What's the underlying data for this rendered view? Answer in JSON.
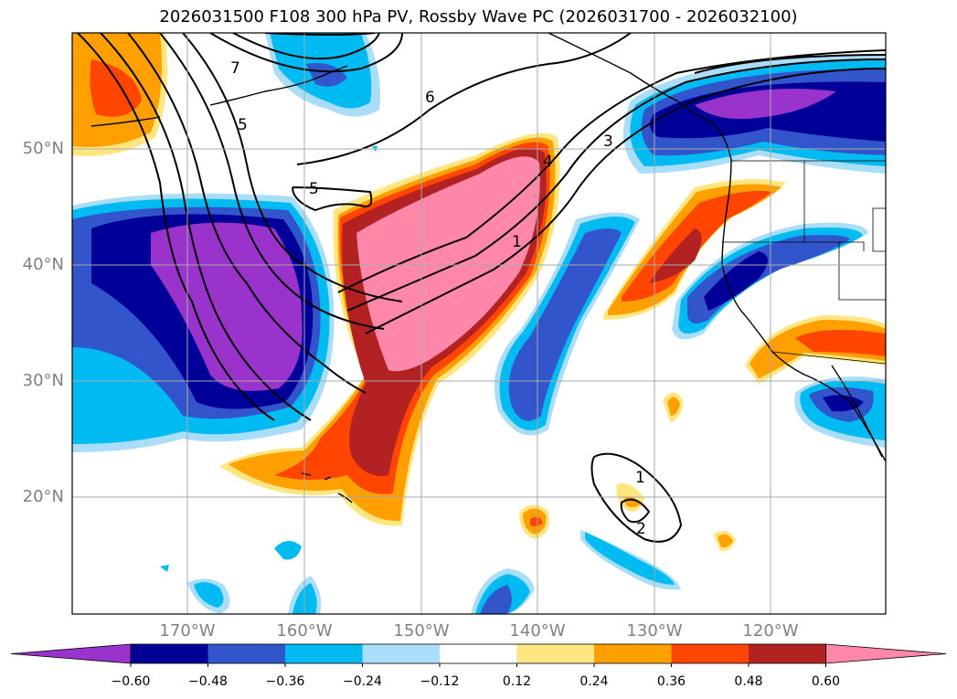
{
  "title": "2026031500 F108 300 hPa PV, Rossby Wave PC (2026031700 - 2026032100)",
  "lat_labels": [
    "50°N",
    "40°N",
    "30°N",
    "20°N"
  ],
  "lon_labels": [
    "170°W",
    "160°W",
    "150°W",
    "140°W",
    "130°W",
    "120°W"
  ],
  "colorbar": {
    "ticks": [
      "−0.60",
      "−0.48",
      "−0.36",
      "−0.24",
      "−0.12",
      "0.12",
      "0.24",
      "0.36",
      "0.48",
      "0.60"
    ],
    "colors": [
      "#9933cc",
      "#000099",
      "#3355cc",
      "#00bbf2",
      "#aaddf7",
      "#ffffff",
      "#ffe680",
      "#ffa000",
      "#ff4500",
      "#b22222",
      "#ff88aa"
    ]
  },
  "contour_labels": [
    "7",
    "6",
    "5",
    "5",
    "4",
    "3",
    "1",
    "1",
    "2"
  ]
}
